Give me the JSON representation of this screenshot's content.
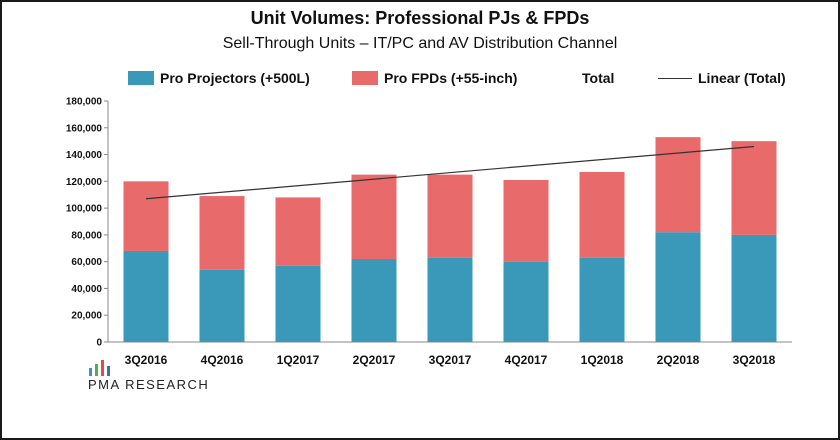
{
  "chart_data": {
    "type": "bar",
    "stacked": true,
    "title": "Unit Volumes:  Professional PJs & FPDs",
    "subtitle": "Sell-Through Units – IT/PC and AV Distribution Channel",
    "categories": [
      "3Q2016",
      "4Q2016",
      "1Q2017",
      "2Q2017",
      "3Q2017",
      "4Q2017",
      "1Q2018",
      "2Q2018",
      "3Q2018"
    ],
    "series": [
      {
        "name": "Pro Projectors (+500L)",
        "color": "#3a98b9",
        "values": [
          68000,
          54000,
          57000,
          62000,
          63000,
          60000,
          63000,
          82000,
          80000
        ]
      },
      {
        "name": "Pro FPDs (+55-inch)",
        "color": "#e86a6a",
        "values": [
          52000,
          55000,
          51000,
          63000,
          62000,
          61000,
          64000,
          71000,
          70000
        ]
      }
    ],
    "total_label": "Total",
    "trendline": {
      "name": "Linear (Total)",
      "color": "#333333",
      "start": 107000,
      "end": 146000
    },
    "yticks": [
      "0",
      "20,000",
      "40,000",
      "60,000",
      "80,000",
      "100,000",
      "120,000",
      "140,000",
      "160,000",
      "180,000"
    ],
    "ylim": [
      0,
      180000
    ],
    "grid": false,
    "legend_position": "top"
  },
  "logo": {
    "text": "PMA RESEARCH"
  }
}
